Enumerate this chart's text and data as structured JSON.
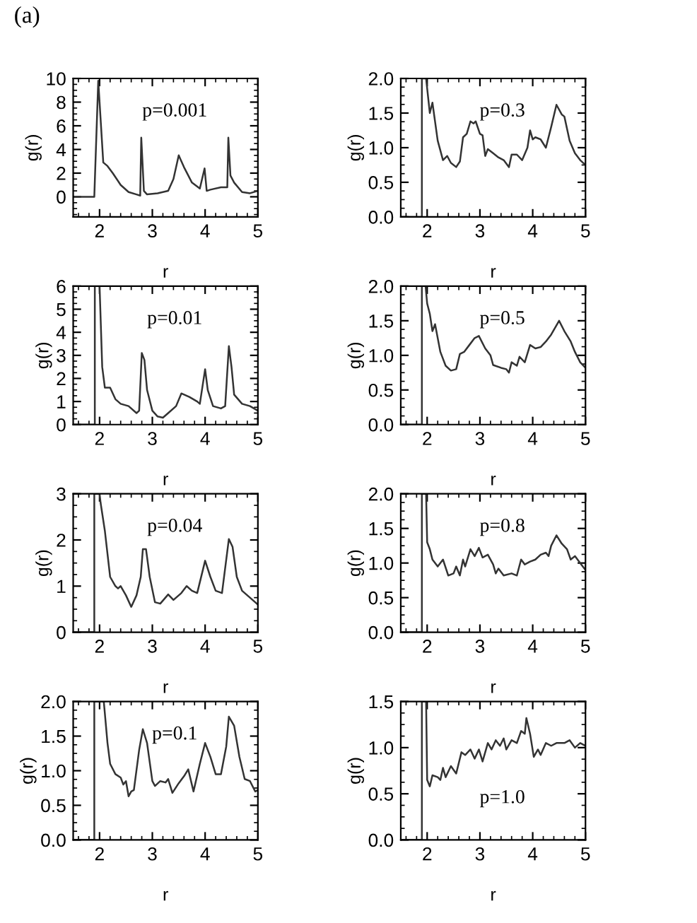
{
  "chart_data": [
    {
      "type": "line",
      "xlabel": "r",
      "ylabel": "g(r)",
      "annotations": [
        "(a)",
        "p=0.001"
      ],
      "xlim": [
        1.5,
        5
      ],
      "xticks": [
        2,
        3,
        4,
        5
      ],
      "ylim": [
        -1.7,
        10
      ],
      "yticks": [
        0,
        2,
        4,
        6,
        8,
        10
      ],
      "grid": false,
      "x": [
        1.5,
        1.9,
        1.975,
        2.07,
        2.15,
        2.25,
        2.4,
        2.55,
        2.7,
        2.77,
        2.79,
        2.84,
        2.9,
        3.1,
        3.3,
        3.4,
        3.5,
        3.6,
        3.75,
        3.9,
        3.99,
        4.03,
        4.1,
        4.3,
        4.42,
        4.44,
        4.48,
        4.55,
        4.7,
        4.85,
        5.0
      ],
      "series": [
        {
          "color": "#333333",
          "values": [
            0,
            0,
            9.8,
            2.9,
            2.6,
            2.0,
            1.0,
            0.4,
            0.2,
            0.1,
            5.0,
            0.5,
            0.2,
            0.3,
            0.5,
            1.5,
            3.5,
            2.5,
            1.2,
            0.7,
            2.4,
            0.5,
            0.6,
            0.8,
            0.8,
            5.0,
            1.8,
            1.2,
            0.4,
            0.3,
            0.5
          ]
        }
      ]
    },
    {
      "type": "line",
      "xlabel": "r",
      "ylabel": "g(r)",
      "annotations": [
        "p=0.3"
      ],
      "xlim": [
        1.5,
        5
      ],
      "xticks": [
        2,
        3,
        4,
        5
      ],
      "ylim": [
        0,
        2
      ],
      "yticks": [
        {
          "value": 0,
          "label": "0.0"
        },
        {
          "value": 0.5,
          "label": "0.5"
        },
        {
          "value": 1,
          "label": "1.0"
        },
        {
          "value": 1.5,
          "label": "1.5"
        },
        {
          "value": 2,
          "label": "2.0"
        }
      ],
      "grid": false,
      "x": [
        1.5,
        1.9,
        1.9,
        1.98,
        2.05,
        2.1,
        2.2,
        2.3,
        2.38,
        2.45,
        2.55,
        2.62,
        2.68,
        2.75,
        2.82,
        2.88,
        2.92,
        3.0,
        3.05,
        3.1,
        3.15,
        3.25,
        3.35,
        3.45,
        3.55,
        3.6,
        3.7,
        3.8,
        3.9,
        3.95,
        4.0,
        4.05,
        4.15,
        4.25,
        4.35,
        4.45,
        4.55,
        4.6,
        4.7,
        4.8,
        4.9,
        5.0
      ],
      "series": [
        {
          "color": "#333333",
          "values": [
            0,
            0,
            2,
            2,
            1.5,
            1.65,
            1.1,
            0.82,
            0.88,
            0.78,
            0.72,
            0.8,
            1.15,
            1.2,
            1.38,
            1.35,
            1.38,
            1.2,
            1.18,
            0.88,
            0.98,
            0.92,
            0.86,
            0.82,
            0.72,
            0.9,
            0.9,
            0.82,
            1.0,
            1.25,
            1.12,
            1.15,
            1.12,
            1.0,
            1.3,
            1.62,
            1.48,
            1.45,
            1.1,
            0.92,
            0.82,
            0.75
          ]
        }
      ]
    },
    {
      "type": "line",
      "xlabel": "r",
      "ylabel": "g(r)",
      "annotations": [
        "p=0.01"
      ],
      "xlim": [
        1.5,
        5
      ],
      "xticks": [
        2,
        3,
        4,
        5
      ],
      "ylim": [
        0,
        6
      ],
      "yticks": [
        0,
        1,
        2,
        3,
        4,
        5,
        6
      ],
      "grid": false,
      "x": [
        1.5,
        1.91,
        1.91,
        2.0,
        2.05,
        2.1,
        2.2,
        2.3,
        2.4,
        2.55,
        2.7,
        2.75,
        2.8,
        2.85,
        2.9,
        3.0,
        3.1,
        3.2,
        3.3,
        3.45,
        3.55,
        3.7,
        3.85,
        3.9,
        4.0,
        4.05,
        4.15,
        4.3,
        4.38,
        4.45,
        4.5,
        4.55,
        4.7,
        4.85,
        5.0
      ],
      "series": [
        {
          "color": "#333333",
          "values": [
            0,
            0,
            6,
            6,
            2.5,
            1.6,
            1.6,
            1.1,
            0.9,
            0.8,
            0.5,
            0.6,
            3.1,
            2.8,
            1.5,
            0.6,
            0.35,
            0.3,
            0.5,
            0.8,
            1.35,
            1.2,
            1.0,
            0.9,
            2.4,
            1.5,
            0.8,
            0.7,
            0.8,
            3.4,
            2.5,
            1.3,
            0.9,
            0.8,
            0.6
          ]
        }
      ]
    },
    {
      "type": "line",
      "xlabel": "r",
      "ylabel": "g(r)",
      "annotations": [
        "p=0.5"
      ],
      "xlim": [
        1.5,
        5
      ],
      "xticks": [
        2,
        3,
        4,
        5
      ],
      "ylim": [
        0,
        2
      ],
      "yticks": [
        {
          "value": 0,
          "label": "0.0"
        },
        {
          "value": 0.5,
          "label": "0.5"
        },
        {
          "value": 1,
          "label": "1.0"
        },
        {
          "value": 1.5,
          "label": "1.5"
        },
        {
          "value": 2,
          "label": "2.0"
        }
      ],
      "grid": false,
      "x": [
        1.5,
        1.9,
        1.9,
        1.97,
        2.0,
        2.05,
        2.1,
        2.15,
        2.25,
        2.35,
        2.45,
        2.55,
        2.62,
        2.7,
        2.8,
        2.9,
        2.98,
        3.1,
        3.2,
        3.25,
        3.4,
        3.5,
        3.55,
        3.6,
        3.7,
        3.75,
        3.85,
        3.95,
        4.05,
        4.15,
        4.25,
        4.35,
        4.5,
        4.6,
        4.72,
        4.8,
        4.9,
        5.0
      ],
      "series": [
        {
          "color": "#333333",
          "values": [
            0,
            0,
            2,
            2,
            1.75,
            1.6,
            1.35,
            1.45,
            1.05,
            0.85,
            0.78,
            0.8,
            1.02,
            1.05,
            1.15,
            1.25,
            1.28,
            1.1,
            1.0,
            0.86,
            0.82,
            0.8,
            0.75,
            0.9,
            0.85,
            0.98,
            0.9,
            1.15,
            1.1,
            1.12,
            1.2,
            1.3,
            1.5,
            1.35,
            1.2,
            1.05,
            0.9,
            0.82
          ]
        }
      ]
    },
    {
      "type": "line",
      "xlabel": "r",
      "ylabel": "g(r)",
      "annotations": [
        "p=0.04"
      ],
      "xlim": [
        1.5,
        5
      ],
      "xticks": [
        2,
        3,
        4,
        5
      ],
      "ylim": [
        0,
        3
      ],
      "yticks": [
        0,
        1,
        2,
        3
      ],
      "grid": false,
      "x": [
        1.5,
        1.9,
        1.9,
        2.0,
        2.02,
        2.1,
        2.2,
        2.3,
        2.35,
        2.4,
        2.5,
        2.6,
        2.7,
        2.78,
        2.82,
        2.88,
        2.95,
        3.05,
        3.15,
        3.3,
        3.4,
        3.55,
        3.65,
        3.75,
        3.85,
        4.0,
        4.1,
        4.2,
        4.32,
        4.45,
        4.52,
        4.6,
        4.7,
        4.85,
        5.0
      ],
      "series": [
        {
          "color": "#333333",
          "values": [
            0,
            0,
            3,
            3,
            2.8,
            2.2,
            1.2,
            1.0,
            0.95,
            1.0,
            0.8,
            0.55,
            0.8,
            1.2,
            1.8,
            1.8,
            1.2,
            0.65,
            0.62,
            0.82,
            0.7,
            0.85,
            1.0,
            0.9,
            0.85,
            1.55,
            1.2,
            0.9,
            0.85,
            2.02,
            1.85,
            1.2,
            0.9,
            0.75,
            0.6
          ]
        }
      ]
    },
    {
      "type": "line",
      "xlabel": "r",
      "ylabel": "g(r)",
      "annotations": [
        "p=0.8"
      ],
      "xlim": [
        1.5,
        5
      ],
      "xticks": [
        2,
        3,
        4,
        5
      ],
      "ylim": [
        0,
        2
      ],
      "yticks": [
        {
          "value": 0,
          "label": "0.0"
        },
        {
          "value": 0.5,
          "label": "0.5"
        },
        {
          "value": 1,
          "label": "1.0"
        },
        {
          "value": 1.5,
          "label": "1.5"
        },
        {
          "value": 2,
          "label": "2.0"
        }
      ],
      "grid": false,
      "x": [
        1.5,
        1.9,
        1.9,
        1.98,
        2.0,
        2.05,
        2.1,
        2.2,
        2.3,
        2.4,
        2.5,
        2.55,
        2.62,
        2.68,
        2.72,
        2.82,
        2.9,
        2.98,
        3.05,
        3.15,
        3.25,
        3.3,
        3.35,
        3.45,
        3.6,
        3.7,
        3.78,
        3.85,
        3.95,
        4.05,
        4.15,
        4.25,
        4.3,
        4.35,
        4.45,
        4.55,
        4.65,
        4.72,
        4.8,
        4.9,
        5.0
      ],
      "series": [
        {
          "color": "#333333",
          "values": [
            0,
            0,
            2,
            2,
            1.3,
            1.2,
            1.05,
            0.95,
            1.05,
            0.82,
            0.85,
            0.95,
            0.82,
            1.05,
            0.95,
            1.2,
            1.1,
            1.22,
            1.08,
            1.12,
            0.98,
            0.85,
            0.92,
            0.82,
            0.85,
            0.82,
            1.05,
            0.98,
            1.02,
            1.05,
            1.12,
            1.15,
            1.1,
            1.25,
            1.4,
            1.28,
            1.2,
            1.05,
            1.1,
            1.0,
            0.9
          ]
        }
      ]
    },
    {
      "type": "line",
      "xlabel": "r",
      "ylabel": "g(r)",
      "annotations": [
        "p=0.1"
      ],
      "xlim": [
        1.5,
        5
      ],
      "xticks": [
        2,
        3,
        4,
        5
      ],
      "ylim": [
        0,
        2
      ],
      "yticks": [
        {
          "value": 0,
          "label": "0.0"
        },
        {
          "value": 0.5,
          "label": "0.5"
        },
        {
          "value": 1,
          "label": "1.0"
        },
        {
          "value": 1.5,
          "label": "1.5"
        },
        {
          "value": 2,
          "label": "2.0"
        }
      ],
      "grid": false,
      "x": [
        1.5,
        1.9,
        1.9,
        2.08,
        2.15,
        2.2,
        2.3,
        2.4,
        2.45,
        2.5,
        2.55,
        2.6,
        2.65,
        2.75,
        2.82,
        2.9,
        3.0,
        3.05,
        3.15,
        3.25,
        3.3,
        3.38,
        3.5,
        3.6,
        3.68,
        3.78,
        3.9,
        4.0,
        4.1,
        4.2,
        4.3,
        4.4,
        4.45,
        4.55,
        4.65,
        4.75,
        4.85,
        4.95,
        5.0
      ],
      "series": [
        {
          "color": "#333333",
          "values": [
            0,
            0,
            2,
            2,
            1.4,
            1.1,
            0.95,
            0.9,
            0.8,
            0.85,
            0.63,
            0.7,
            0.72,
            1.3,
            1.6,
            1.4,
            0.85,
            0.78,
            0.85,
            0.83,
            0.88,
            0.68,
            0.82,
            0.92,
            1.02,
            0.7,
            1.1,
            1.4,
            1.2,
            0.95,
            0.95,
            1.35,
            1.78,
            1.65,
            1.2,
            0.88,
            0.85,
            0.7,
            0.72
          ]
        }
      ]
    },
    {
      "type": "line",
      "xlabel": "r",
      "ylabel": "g(r)",
      "annotations": [
        "p=1.0"
      ],
      "xlim": [
        1.5,
        5
      ],
      "xticks": [
        2,
        3,
        4,
        5
      ],
      "ylim": [
        0,
        1.5
      ],
      "yticks": [
        {
          "value": 0,
          "label": "0.0"
        },
        {
          "value": 0.5,
          "label": "0.5"
        },
        {
          "value": 1,
          "label": "1.0"
        },
        {
          "value": 1.5,
          "label": "1.5"
        }
      ],
      "grid": false,
      "x": [
        1.5,
        1.9,
        1.9,
        1.98,
        2.0,
        2.05,
        2.1,
        2.2,
        2.25,
        2.3,
        2.35,
        2.45,
        2.55,
        2.65,
        2.72,
        2.82,
        2.9,
        2.98,
        3.05,
        3.15,
        3.22,
        3.3,
        3.38,
        3.45,
        3.5,
        3.6,
        3.7,
        3.78,
        3.85,
        3.88,
        3.95,
        4.02,
        4.1,
        4.15,
        4.25,
        4.35,
        4.45,
        4.6,
        4.7,
        4.8,
        4.9,
        5.0
      ],
      "series": [
        {
          "color": "#333333",
          "values": [
            0,
            0,
            1.5,
            1.5,
            0.65,
            0.58,
            0.7,
            0.68,
            0.65,
            0.78,
            0.68,
            0.8,
            0.72,
            0.95,
            0.92,
            0.98,
            0.88,
            0.98,
            0.85,
            1.05,
            0.98,
            1.08,
            1.02,
            1.1,
            0.98,
            1.08,
            1.05,
            1.18,
            1.15,
            1.32,
            1.15,
            0.9,
            0.98,
            0.92,
            1.05,
            1.02,
            1.05,
            1.05,
            1.08,
            1.0,
            1.05,
            1.02
          ]
        }
      ]
    }
  ]
}
